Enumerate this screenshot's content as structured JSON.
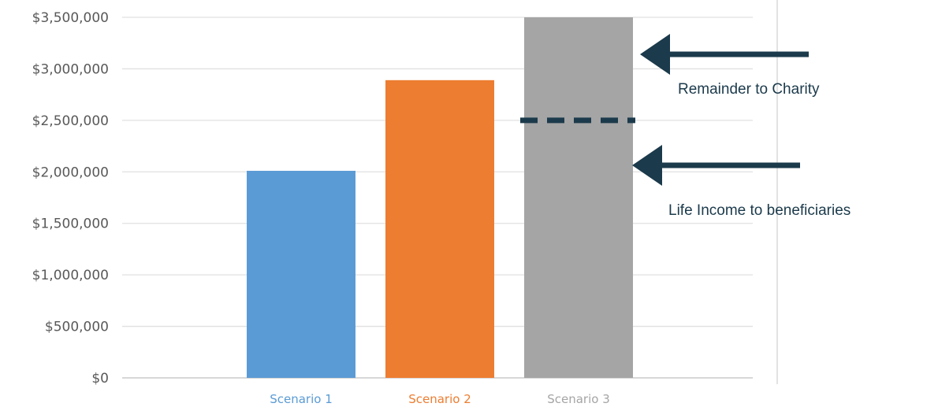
{
  "chart_data": {
    "type": "bar",
    "categories": [
      "Scenario 1",
      "Scenario 2",
      "Scenario 3"
    ],
    "values": [
      2010000,
      2890000,
      3500000
    ],
    "ylim": [
      0,
      3500000
    ],
    "yticks": [
      0,
      500000,
      1000000,
      1500000,
      2000000,
      2500000,
      3000000,
      3500000
    ],
    "ytick_labels": [
      "$0",
      "$500,000",
      "$1,000,000",
      "$1,500,000",
      "$2,000,000",
      "$2,500,000",
      "$3,000,000",
      "$3,500,000"
    ],
    "grid": true,
    "colors": [
      "#5b9bd5",
      "#ed7d31",
      "#a5a5a5"
    ],
    "divider_value": 2500000,
    "annotations": [
      {
        "text": "Remainder to Charity",
        "color": "#1b3a4b"
      },
      {
        "text": "Life Income to beneficiaries",
        "color": "#1b3a4b"
      }
    ]
  }
}
